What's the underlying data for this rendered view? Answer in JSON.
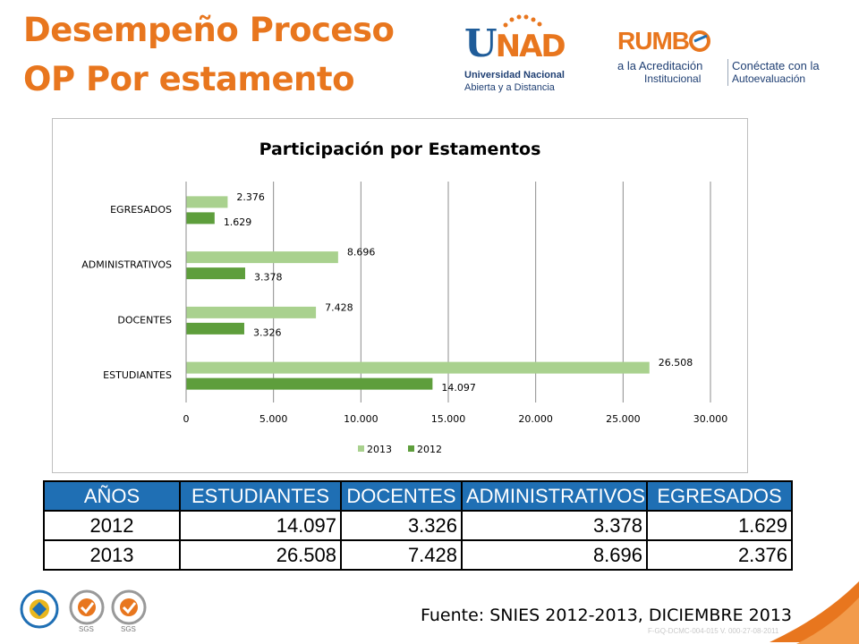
{
  "slide": {
    "title_line1": "Desempeño Proceso",
    "title_line2": "OP Por estamento",
    "source": "Fuente: SNIES 2012-2013, DICIEMBRE 2013",
    "footer_code": "F-GQ-DCMC-004-015 V. 000-27-08-2011"
  },
  "logos": {
    "unad_letters_1": "U",
    "unad_letters_2": "NAD",
    "unad_line1": "Universidad Nacional",
    "unad_line2": "Abierta y a Distancia",
    "rumbo_word": "RUMB",
    "rumbo_line1": "a la Acreditación",
    "rumbo_line2": "Institucional",
    "rumbo_right1": "Conéctate con la",
    "rumbo_right2": "Autoevaluación",
    "sgs_label": "SGS"
  },
  "colors": {
    "title": "#E8761E",
    "series_2013": "#A9D18E",
    "series_2012": "#5E9E3C",
    "table_header": "#1F6FB4"
  },
  "chart_data": {
    "type": "bar",
    "orientation": "horizontal",
    "title": "Participación por Estamentos",
    "categories": [
      "ESTUDIANTES",
      "DOCENTES",
      "ADMINISTRATIVOS",
      "EGRESADOS"
    ],
    "series": [
      {
        "name": "2013",
        "values": [
          26508,
          7428,
          8696,
          2376
        ],
        "labels": [
          "26.508",
          "7.428",
          "8.696",
          "2.376"
        ]
      },
      {
        "name": "2012",
        "values": [
          14097,
          3326,
          3378,
          1629
        ],
        "labels": [
          "14.097",
          "3.326",
          "3.378",
          "1.629"
        ]
      }
    ],
    "xlim": [
      0,
      30000
    ],
    "xticks": [
      0,
      5000,
      10000,
      15000,
      20000,
      25000,
      30000
    ],
    "xtick_labels": [
      "0",
      "5.000",
      "10.000",
      "15.000",
      "20.000",
      "25.000",
      "30.000"
    ],
    "grid": "vertical",
    "legend_position": "bottom"
  },
  "table": {
    "headers": [
      "AÑOS",
      "ESTUDIANTES",
      "DOCENTES",
      "ADMINISTRATIVOS",
      "EGRESADOS"
    ],
    "rows": [
      [
        "2012",
        "14.097",
        "3.326",
        "3.378",
        "1.629"
      ],
      [
        "2013",
        "26.508",
        "7.428",
        "8.696",
        "2.376"
      ]
    ]
  }
}
